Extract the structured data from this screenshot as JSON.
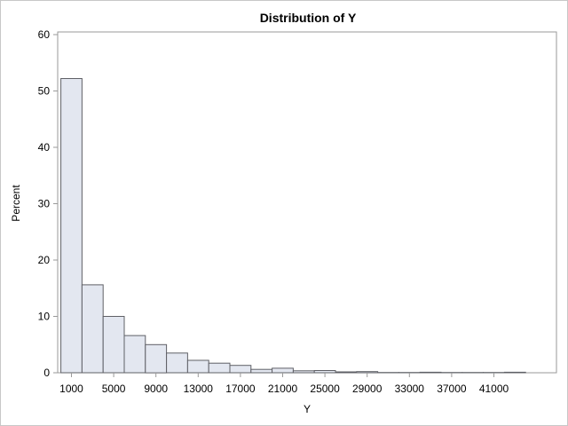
{
  "chart_data": {
    "type": "bar",
    "title": "Distribution of Y",
    "xlabel": "Y",
    "ylabel": "Percent",
    "bin_width": 2000,
    "bin_centers": [
      1000,
      3000,
      5000,
      7000,
      9000,
      11000,
      13000,
      15000,
      17000,
      19000,
      21000,
      23000,
      25000,
      27000,
      29000,
      31000,
      33000,
      35000,
      37000,
      39000,
      41000,
      43000
    ],
    "values": [
      52.2,
      15.6,
      10.0,
      6.6,
      5.0,
      3.5,
      2.2,
      1.7,
      1.3,
      0.6,
      0.8,
      0.35,
      0.4,
      0.15,
      0.2,
      0.05,
      0.05,
      0.1,
      0.05,
      0.05,
      0.05,
      0.1
    ],
    "x_ticks": [
      "1000",
      "5000",
      "9000",
      "13000",
      "17000",
      "21000",
      "25000",
      "29000",
      "33000",
      "37000",
      "41000"
    ],
    "y_ticks": [
      "0",
      "10",
      "20",
      "30",
      "40",
      "50",
      "60"
    ],
    "ylim": [
      0,
      60
    ],
    "xlim": [
      -1000,
      45000
    ],
    "grid": false,
    "colors": {
      "bar_fill": "#e3e7f0",
      "bar_stroke": "#5f6066",
      "axis": "#9a9a9a"
    }
  }
}
